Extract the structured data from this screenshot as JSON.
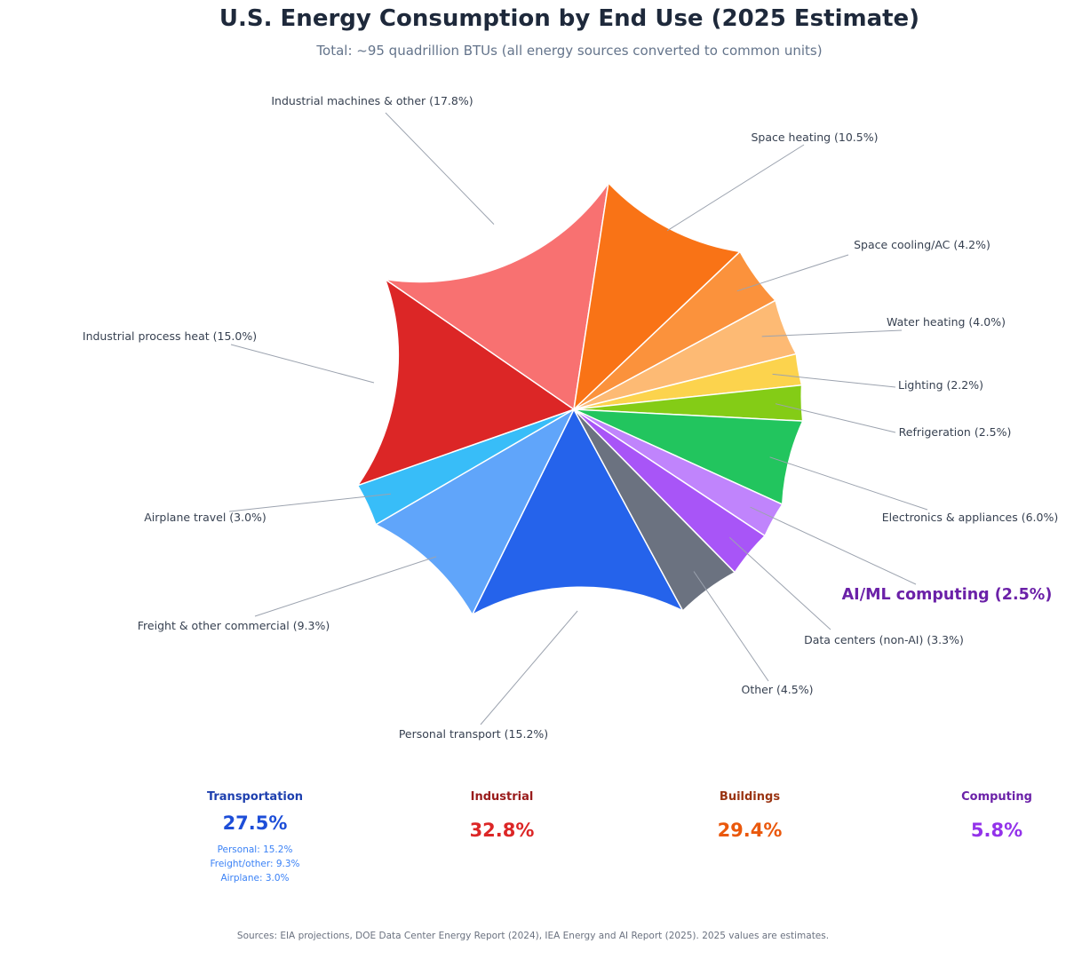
{
  "chart_data": {
    "type": "pie",
    "title": "U.S. Energy Consumption by End Use (2025 Estimate)",
    "subtitle": "Total: ~95 quadrillion BTUs (all energy sources converted to common units)",
    "slices": [
      {
        "label": "Personal transport (15.2%)",
        "value": 15.2,
        "color": "#2563eb",
        "highlight": false
      },
      {
        "label": "Freight & other commercial (9.3%)",
        "value": 9.3,
        "color": "#60a5fa",
        "highlight": false
      },
      {
        "label": "Airplane travel (3.0%)",
        "value": 3.0,
        "color": "#38bdf8",
        "highlight": false
      },
      {
        "label": "Industrial process heat (15.0%)",
        "value": 15.0,
        "color": "#dc2626",
        "highlight": false
      },
      {
        "label": "Industrial machines & other (17.8%)",
        "value": 17.8,
        "color": "#f87171",
        "highlight": false
      },
      {
        "label": "Space heating (10.5%)",
        "value": 10.5,
        "color": "#f97316",
        "highlight": false
      },
      {
        "label": "Space cooling/AC (4.2%)",
        "value": 4.2,
        "color": "#fb923c",
        "highlight": false
      },
      {
        "label": "Water heating (4.0%)",
        "value": 4.0,
        "color": "#fdba74",
        "highlight": false
      },
      {
        "label": "Lighting (2.2%)",
        "value": 2.2,
        "color": "#fcd34d",
        "highlight": false
      },
      {
        "label": "Refrigeration (2.5%)",
        "value": 2.5,
        "color": "#84cc16",
        "highlight": false
      },
      {
        "label": "Electronics & appliances (6.0%)",
        "value": 6.0,
        "color": "#22c55e",
        "highlight": false
      },
      {
        "label": "AI/ML computing (2.5%)",
        "value": 2.5,
        "color": "#c084fc",
        "highlight": true
      },
      {
        "label": "Data centers (non-AI) (3.3%)",
        "value": 3.3,
        "color": "#a855f7",
        "highlight": false
      },
      {
        "label": "Other (4.5%)",
        "value": 4.5,
        "color": "#6b7280",
        "highlight": false
      }
    ]
  },
  "summary": {
    "transport": {
      "title": "Transportation",
      "value": "27.5%",
      "details": [
        "Personal: 15.2%",
        "Freight/other: 9.3%",
        "Airplane: 3.0%"
      ],
      "title_color": "#1e40af",
      "value_color": "#1d4ed8"
    },
    "industrial": {
      "title": "Industrial",
      "value": "32.8%",
      "title_color": "#991b1b",
      "value_color": "#dc2626"
    },
    "buildings": {
      "title": "Buildings",
      "value": "29.4%",
      "title_color": "#9a3412",
      "value_color": "#ea580c"
    },
    "computing": {
      "title": "Computing",
      "value": "5.8%",
      "title_color": "#6b21a8",
      "value_color": "#9333ea"
    }
  },
  "sources": "Sources: EIA projections, DOE Data Center Energy Report (2024), IEA Energy and AI Report (2025). 2025 values are estimates."
}
